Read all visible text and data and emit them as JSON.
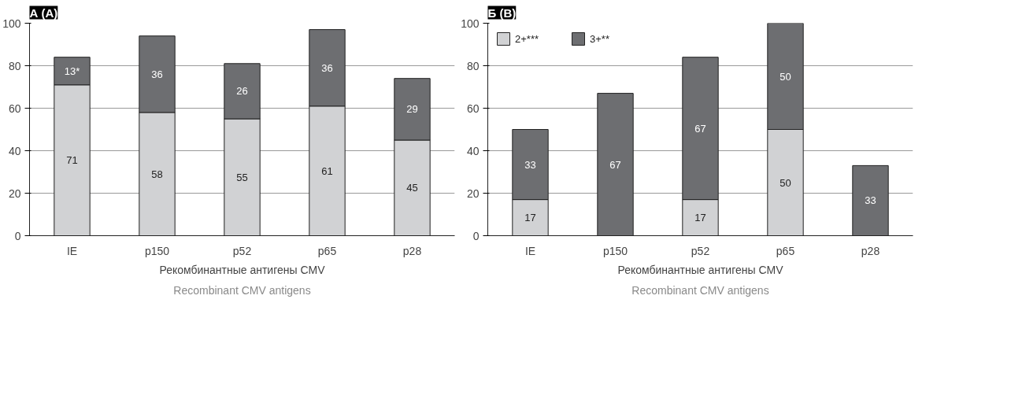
{
  "chart_data": [
    {
      "type": "bar",
      "title": "А (A)",
      "xlabel": "Рекомбинантные антигены CMV",
      "annotations": [
        "Recombinant CMV antigens"
      ],
      "categories": [
        "IE",
        "p150",
        "p52",
        "p65",
        "p28"
      ],
      "stacked": true,
      "ylim": [
        0,
        100
      ],
      "yticks": [
        0,
        20,
        40,
        60,
        80,
        100
      ],
      "grid": "y",
      "legend": false,
      "series": [
        {
          "color": "#d1d2d4",
          "values": [
            71,
            58,
            55,
            61,
            45
          ],
          "value_labels": [
            "71",
            "58",
            "55",
            "61",
            "45"
          ]
        },
        {
          "color": "#6d6e71",
          "values": [
            13,
            36,
            26,
            36,
            29
          ],
          "value_labels": [
            "13*",
            "36",
            "26",
            "36",
            "29"
          ]
        }
      ]
    },
    {
      "type": "bar",
      "title": "Б (B)",
      "xlabel": "Рекомбинантные антигены CMV",
      "annotations": [
        "Recombinant CMV antigens"
      ],
      "categories": [
        "IE",
        "p150",
        "p52",
        "p65",
        "p28"
      ],
      "stacked": true,
      "ylim": [
        0,
        100
      ],
      "yticks": [
        0,
        20,
        40,
        60,
        80,
        100
      ],
      "grid": "y",
      "legend": "top left",
      "series": [
        {
          "name": "2+***",
          "color": "#d1d2d4",
          "values": [
            17,
            null,
            17,
            50,
            null
          ],
          "value_labels": [
            "17",
            null,
            "17",
            "50",
            null
          ]
        },
        {
          "name": "3+**",
          "color": "#6d6e71",
          "values": [
            33,
            67,
            67,
            50,
            33
          ],
          "value_labels": [
            "33",
            "67",
            "67",
            "50",
            "33"
          ]
        }
      ]
    }
  ]
}
